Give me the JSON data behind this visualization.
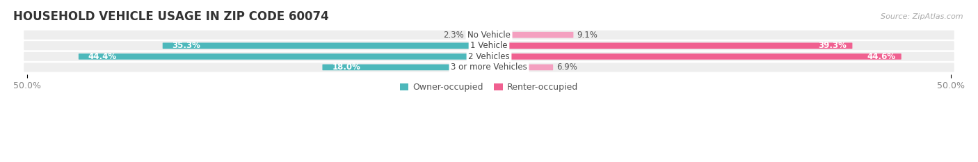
{
  "title": "HOUSEHOLD VEHICLE USAGE IN ZIP CODE 60074",
  "source": "Source: ZipAtlas.com",
  "categories": [
    "No Vehicle",
    "1 Vehicle",
    "2 Vehicles",
    "3 or more Vehicles"
  ],
  "owner_values": [
    2.3,
    35.3,
    44.4,
    18.0
  ],
  "renter_values": [
    9.1,
    39.3,
    44.6,
    6.9
  ],
  "owner_color_large": "#4db8bb",
  "owner_color_small": "#8dd4d6",
  "renter_color_large": "#f06090",
  "renter_color_small": "#f4a0c0",
  "row_bg_color": "#eeeeee",
  "xlim": 50.0,
  "legend_labels": [
    "Owner-occupied",
    "Renter-occupied"
  ],
  "title_fontsize": 12,
  "tick_fontsize": 9,
  "bar_label_fontsize": 8.5,
  "cat_label_fontsize": 8.5,
  "source_fontsize": 8
}
